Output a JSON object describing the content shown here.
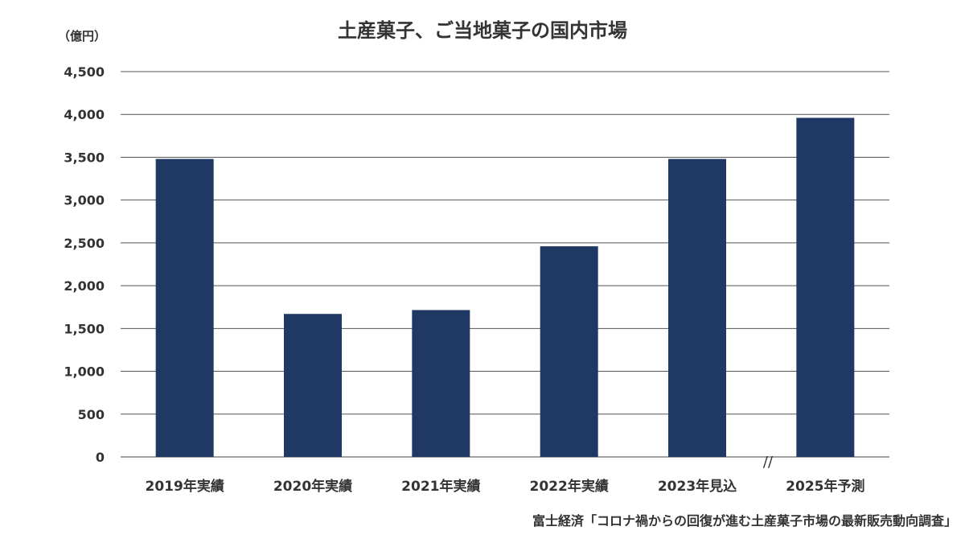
{
  "chart_data": {
    "type": "bar",
    "title": "土産菓子、ご当地菓子の国内市場",
    "unit_label": "（億円）",
    "categories": [
      "2019年実績",
      "2020年実績",
      "2021年実績",
      "2022年実績",
      "2023年見込",
      "2025年予測"
    ],
    "values": [
      3480,
      1670,
      1715,
      2460,
      3480,
      3960
    ],
    "ylim": [
      0,
      4500
    ],
    "yticks": [
      0,
      500,
      1000,
      1500,
      2000,
      2500,
      3000,
      3500,
      4000,
      4500
    ],
    "ytick_labels": [
      "0",
      "500",
      "1,000",
      "1,500",
      "2,000",
      "2,500",
      "3,000",
      "3,500",
      "4,000",
      "4,500"
    ],
    "grid": true,
    "axis_break_label": "//",
    "source": "富士経済「コロナ禍からの回復が進む土産菓子市場の最新販売動向調査」",
    "bar_color": "#1f3864"
  }
}
